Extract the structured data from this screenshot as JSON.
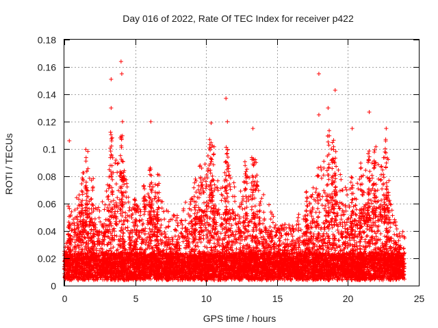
{
  "chart_data": {
    "type": "scatter",
    "title": "Day 016 of 2022, Rate Of TEC Index for receiver p422",
    "xlabel": "GPS time / hours",
    "ylabel": "ROTI / TECUs",
    "xlim": [
      0,
      25
    ],
    "ylim": [
      0,
      0.18
    ],
    "xticks": [
      "0",
      "5",
      "10",
      "15",
      "20",
      "25"
    ],
    "xtick_values": [
      0,
      5,
      10,
      15,
      20,
      25
    ],
    "yticks": [
      "0",
      "0.02",
      "0.04",
      "0.06",
      "0.08",
      "0.1",
      "0.12",
      "0.14",
      "0.16",
      "0.18"
    ],
    "ytick_values": [
      0,
      0.02,
      0.04,
      0.06,
      0.08,
      0.1,
      0.12,
      0.14,
      0.16,
      0.18
    ],
    "grid": true,
    "marker": "+",
    "color": "#ff0000",
    "x_data_range": [
      0,
      24
    ],
    "notable_peaks": [
      {
        "x": 0.35,
        "y": 0.106
      },
      {
        "x": 3.3,
        "y": 0.151
      },
      {
        "x": 3.3,
        "y": 0.13
      },
      {
        "x": 4.0,
        "y": 0.164
      },
      {
        "x": 4.05,
        "y": 0.155
      },
      {
        "x": 4.1,
        "y": 0.12
      },
      {
        "x": 6.1,
        "y": 0.12
      },
      {
        "x": 10.35,
        "y": 0.119
      },
      {
        "x": 11.4,
        "y": 0.137
      },
      {
        "x": 11.5,
        "y": 0.12
      },
      {
        "x": 13.3,
        "y": 0.115
      },
      {
        "x": 17.95,
        "y": 0.155
      },
      {
        "x": 17.95,
        "y": 0.125
      },
      {
        "x": 18.6,
        "y": 0.13
      },
      {
        "x": 19.1,
        "y": 0.143
      },
      {
        "x": 20.3,
        "y": 0.115
      },
      {
        "x": 21.5,
        "y": 0.127
      },
      {
        "x": 22.7,
        "y": 0.115
      }
    ]
  }
}
